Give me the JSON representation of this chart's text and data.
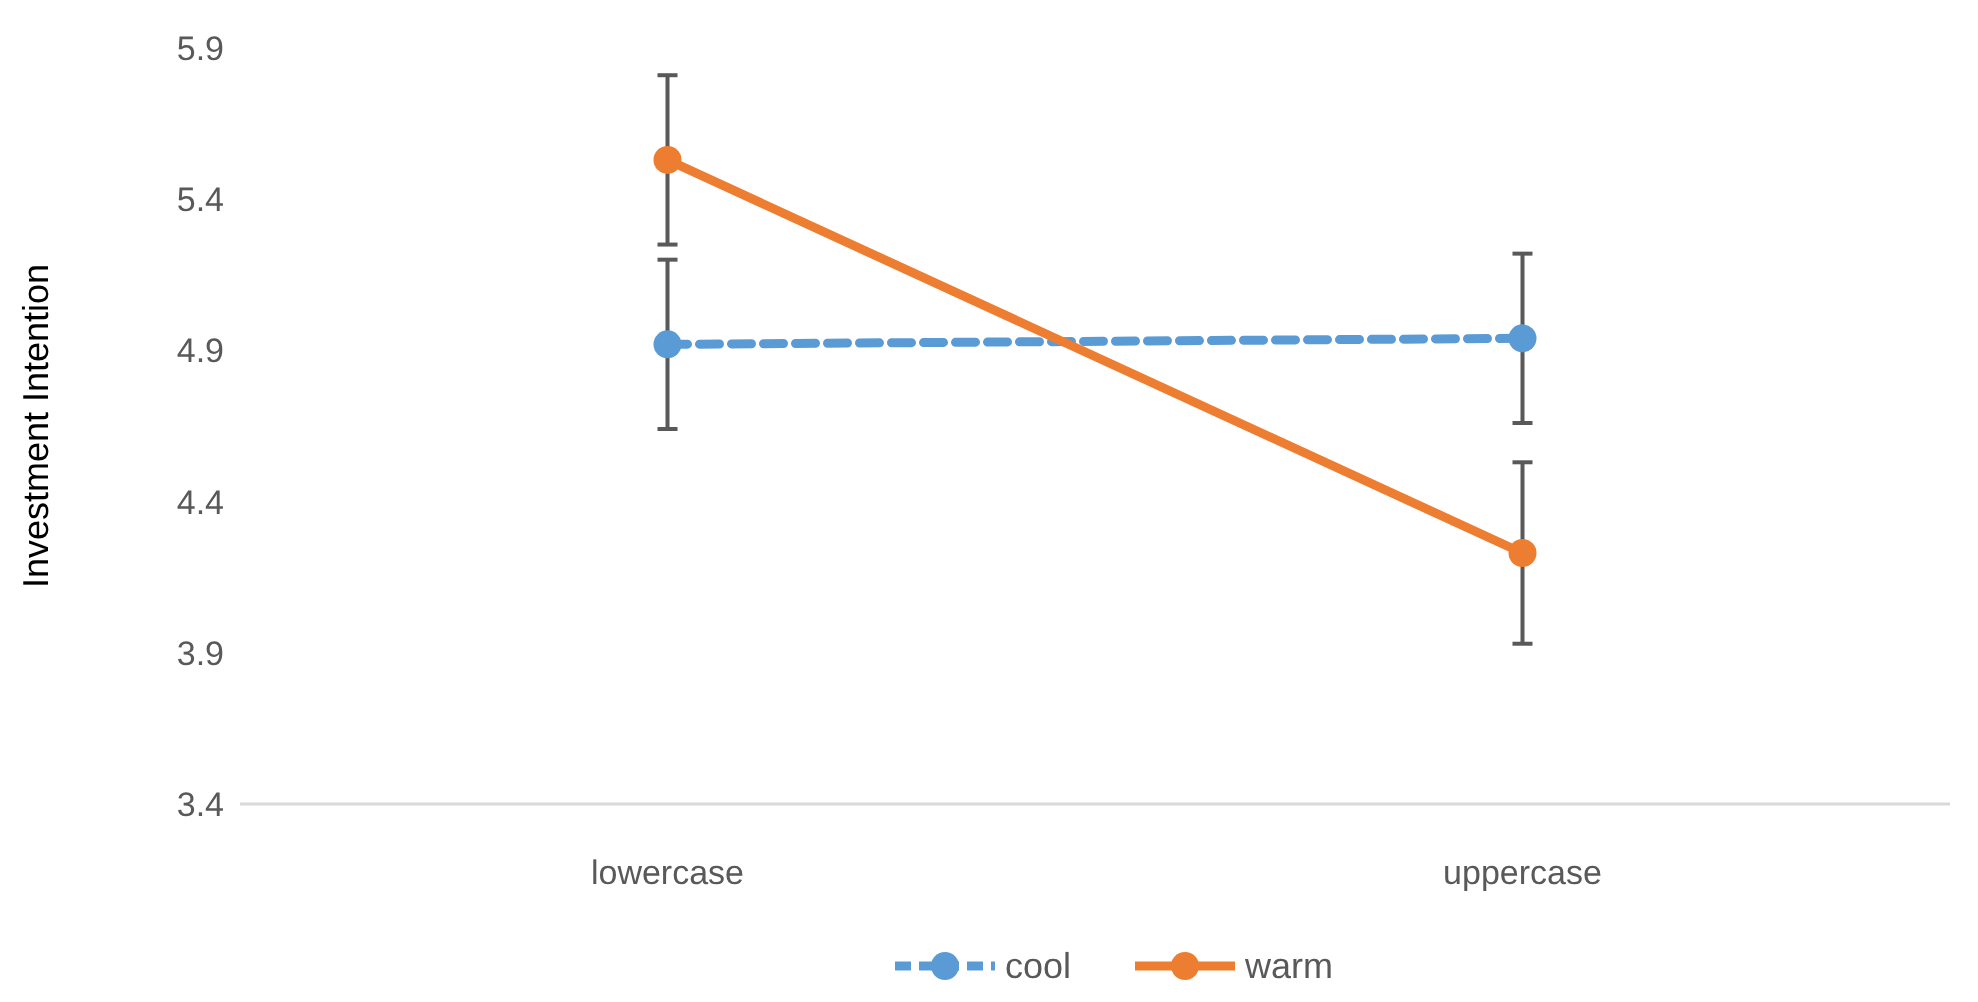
{
  "chart_data": {
    "type": "line",
    "ylabel": "Investment Intention",
    "categories": [
      "lowercase",
      "uppercase"
    ],
    "ylim": [
      3.4,
      5.9
    ],
    "yticks": [
      3.4,
      3.9,
      4.4,
      4.9,
      5.4,
      5.9
    ],
    "grid": false,
    "legend": "bottom",
    "marker": "circle",
    "series": [
      {
        "name": "cool",
        "color": "#5b9bd5",
        "line_style": "dashed",
        "values": [
          4.92,
          4.94
        ],
        "errors": [
          0.28,
          0.28
        ]
      },
      {
        "name": "warm",
        "color": "#ed7d31",
        "line_style": "solid",
        "values": [
          5.53,
          4.23
        ],
        "errors": [
          0.28,
          0.3
        ]
      }
    ]
  }
}
